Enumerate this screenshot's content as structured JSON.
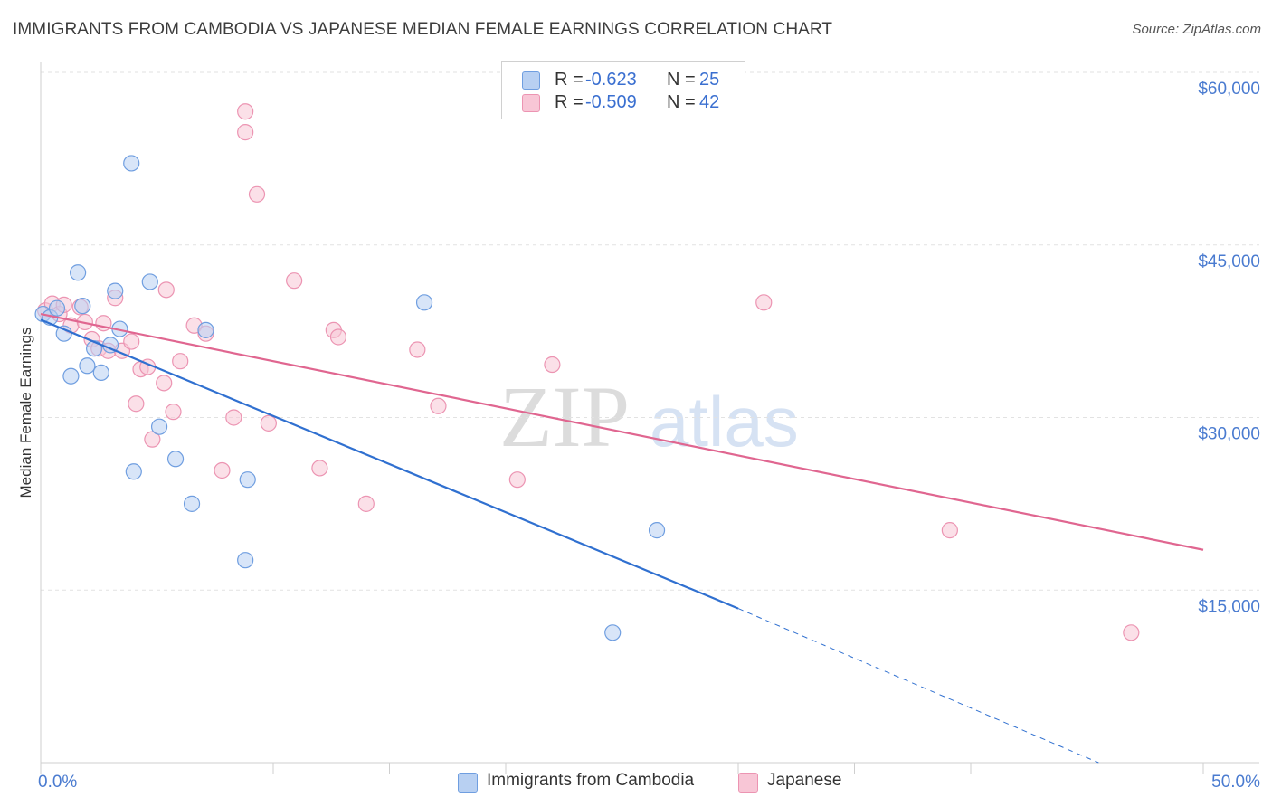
{
  "header": {
    "title": "IMMIGRANTS FROM CAMBODIA VS JAPANESE MEDIAN FEMALE EARNINGS CORRELATION CHART",
    "source": "Source: ZipAtlas.com"
  },
  "legend": {
    "rows": [
      {
        "r_label": "R =",
        "r_value": "-0.623",
        "n_label": "N =",
        "n_value": "25"
      },
      {
        "r_label": "R =",
        "r_value": "-0.509",
        "n_label": "N =",
        "n_value": "42"
      }
    ]
  },
  "watermark": {
    "zip": "ZIP",
    "atlas": "atlas"
  },
  "colors": {
    "cambodia_fill": "#b8d0f2",
    "cambodia_stroke": "#6f9ee0",
    "cambodia_line": "#3070d0",
    "japanese_fill": "#f8c6d6",
    "japanese_stroke": "#ec94b2",
    "japanese_line": "#e06690",
    "grid": "#e2e2e2",
    "tick_text": "#4a7bd0"
  },
  "chart_data": {
    "type": "scatter",
    "title": "IMMIGRANTS FROM CAMBODIA VS JAPANESE MEDIAN FEMALE EARNINGS CORRELATION CHART",
    "xlabel": "",
    "ylabel": "Median Female Earnings",
    "xlim": [
      0,
      50
    ],
    "ylim": [
      0,
      60000
    ],
    "x_tick_labels": [
      "0.0%",
      "50.0%"
    ],
    "y_ticks": [
      {
        "value": 15000,
        "label": "$15,000"
      },
      {
        "value": 30000,
        "label": "$30,000"
      },
      {
        "value": 45000,
        "label": "$45,000"
      },
      {
        "value": 60000,
        "label": "$60,000"
      }
    ],
    "grid": "horizontal dashed",
    "legend_position": "top-center",
    "series": [
      {
        "name": "Immigrants from Cambodia",
        "color": "#6f9ee0",
        "points": [
          {
            "x": 0.1,
            "y": 39000
          },
          {
            "x": 0.4,
            "y": 38700
          },
          {
            "x": 0.7,
            "y": 39500
          },
          {
            "x": 1.0,
            "y": 37300
          },
          {
            "x": 1.3,
            "y": 33600
          },
          {
            "x": 1.6,
            "y": 42600
          },
          {
            "x": 1.8,
            "y": 39700
          },
          {
            "x": 2.0,
            "y": 34500
          },
          {
            "x": 2.3,
            "y": 36000
          },
          {
            "x": 2.6,
            "y": 33900
          },
          {
            "x": 3.0,
            "y": 36300
          },
          {
            "x": 3.2,
            "y": 41000
          },
          {
            "x": 3.4,
            "y": 37700
          },
          {
            "x": 3.9,
            "y": 52100
          },
          {
            "x": 4.0,
            "y": 25300
          },
          {
            "x": 4.7,
            "y": 41800
          },
          {
            "x": 5.1,
            "y": 29200
          },
          {
            "x": 5.8,
            "y": 26400
          },
          {
            "x": 6.5,
            "y": 22500
          },
          {
            "x": 7.1,
            "y": 37600
          },
          {
            "x": 8.9,
            "y": 24600
          },
          {
            "x": 8.8,
            "y": 17600
          },
          {
            "x": 16.5,
            "y": 40000
          },
          {
            "x": 26.5,
            "y": 20200
          },
          {
            "x": 24.6,
            "y": 11300
          }
        ],
        "trend": {
          "x0": 0,
          "y0": 38500,
          "x1": 30,
          "y1": 13400,
          "dashed_to_x": 45.5,
          "dashed_to_y": 0
        }
      },
      {
        "name": "Japanese",
        "color": "#ec94b2",
        "points": [
          {
            "x": 0.2,
            "y": 39300
          },
          {
            "x": 0.5,
            "y": 39900
          },
          {
            "x": 0.8,
            "y": 39000
          },
          {
            "x": 1.0,
            "y": 39800
          },
          {
            "x": 1.3,
            "y": 38000
          },
          {
            "x": 1.7,
            "y": 39600
          },
          {
            "x": 1.9,
            "y": 38300
          },
          {
            "x": 2.2,
            "y": 36800
          },
          {
            "x": 2.5,
            "y": 36000
          },
          {
            "x": 2.7,
            "y": 38200
          },
          {
            "x": 2.9,
            "y": 35800
          },
          {
            "x": 3.2,
            "y": 40400
          },
          {
            "x": 3.5,
            "y": 35800
          },
          {
            "x": 3.9,
            "y": 36600
          },
          {
            "x": 4.1,
            "y": 31200
          },
          {
            "x": 4.3,
            "y": 34200
          },
          {
            "x": 4.6,
            "y": 34400
          },
          {
            "x": 4.8,
            "y": 28100
          },
          {
            "x": 5.3,
            "y": 33000
          },
          {
            "x": 5.4,
            "y": 41100
          },
          {
            "x": 5.7,
            "y": 30500
          },
          {
            "x": 6.0,
            "y": 34900
          },
          {
            "x": 6.6,
            "y": 38000
          },
          {
            "x": 7.1,
            "y": 37300
          },
          {
            "x": 7.8,
            "y": 25400
          },
          {
            "x": 8.3,
            "y": 30000
          },
          {
            "x": 8.8,
            "y": 56600
          },
          {
            "x": 8.8,
            "y": 54800
          },
          {
            "x": 9.3,
            "y": 49400
          },
          {
            "x": 9.8,
            "y": 29500
          },
          {
            "x": 10.9,
            "y": 41900
          },
          {
            "x": 12.0,
            "y": 25600
          },
          {
            "x": 12.6,
            "y": 37600
          },
          {
            "x": 14.0,
            "y": 22500
          },
          {
            "x": 16.2,
            "y": 35900
          },
          {
            "x": 17.1,
            "y": 31000
          },
          {
            "x": 20.5,
            "y": 24600
          },
          {
            "x": 22.0,
            "y": 34600
          },
          {
            "x": 31.1,
            "y": 40000
          },
          {
            "x": 39.1,
            "y": 20200
          },
          {
            "x": 46.9,
            "y": 11300
          },
          {
            "x": 12.8,
            "y": 37000
          }
        ],
        "trend": {
          "x0": 0,
          "y0": 39000,
          "x1": 50,
          "y1": 18500
        }
      }
    ]
  }
}
